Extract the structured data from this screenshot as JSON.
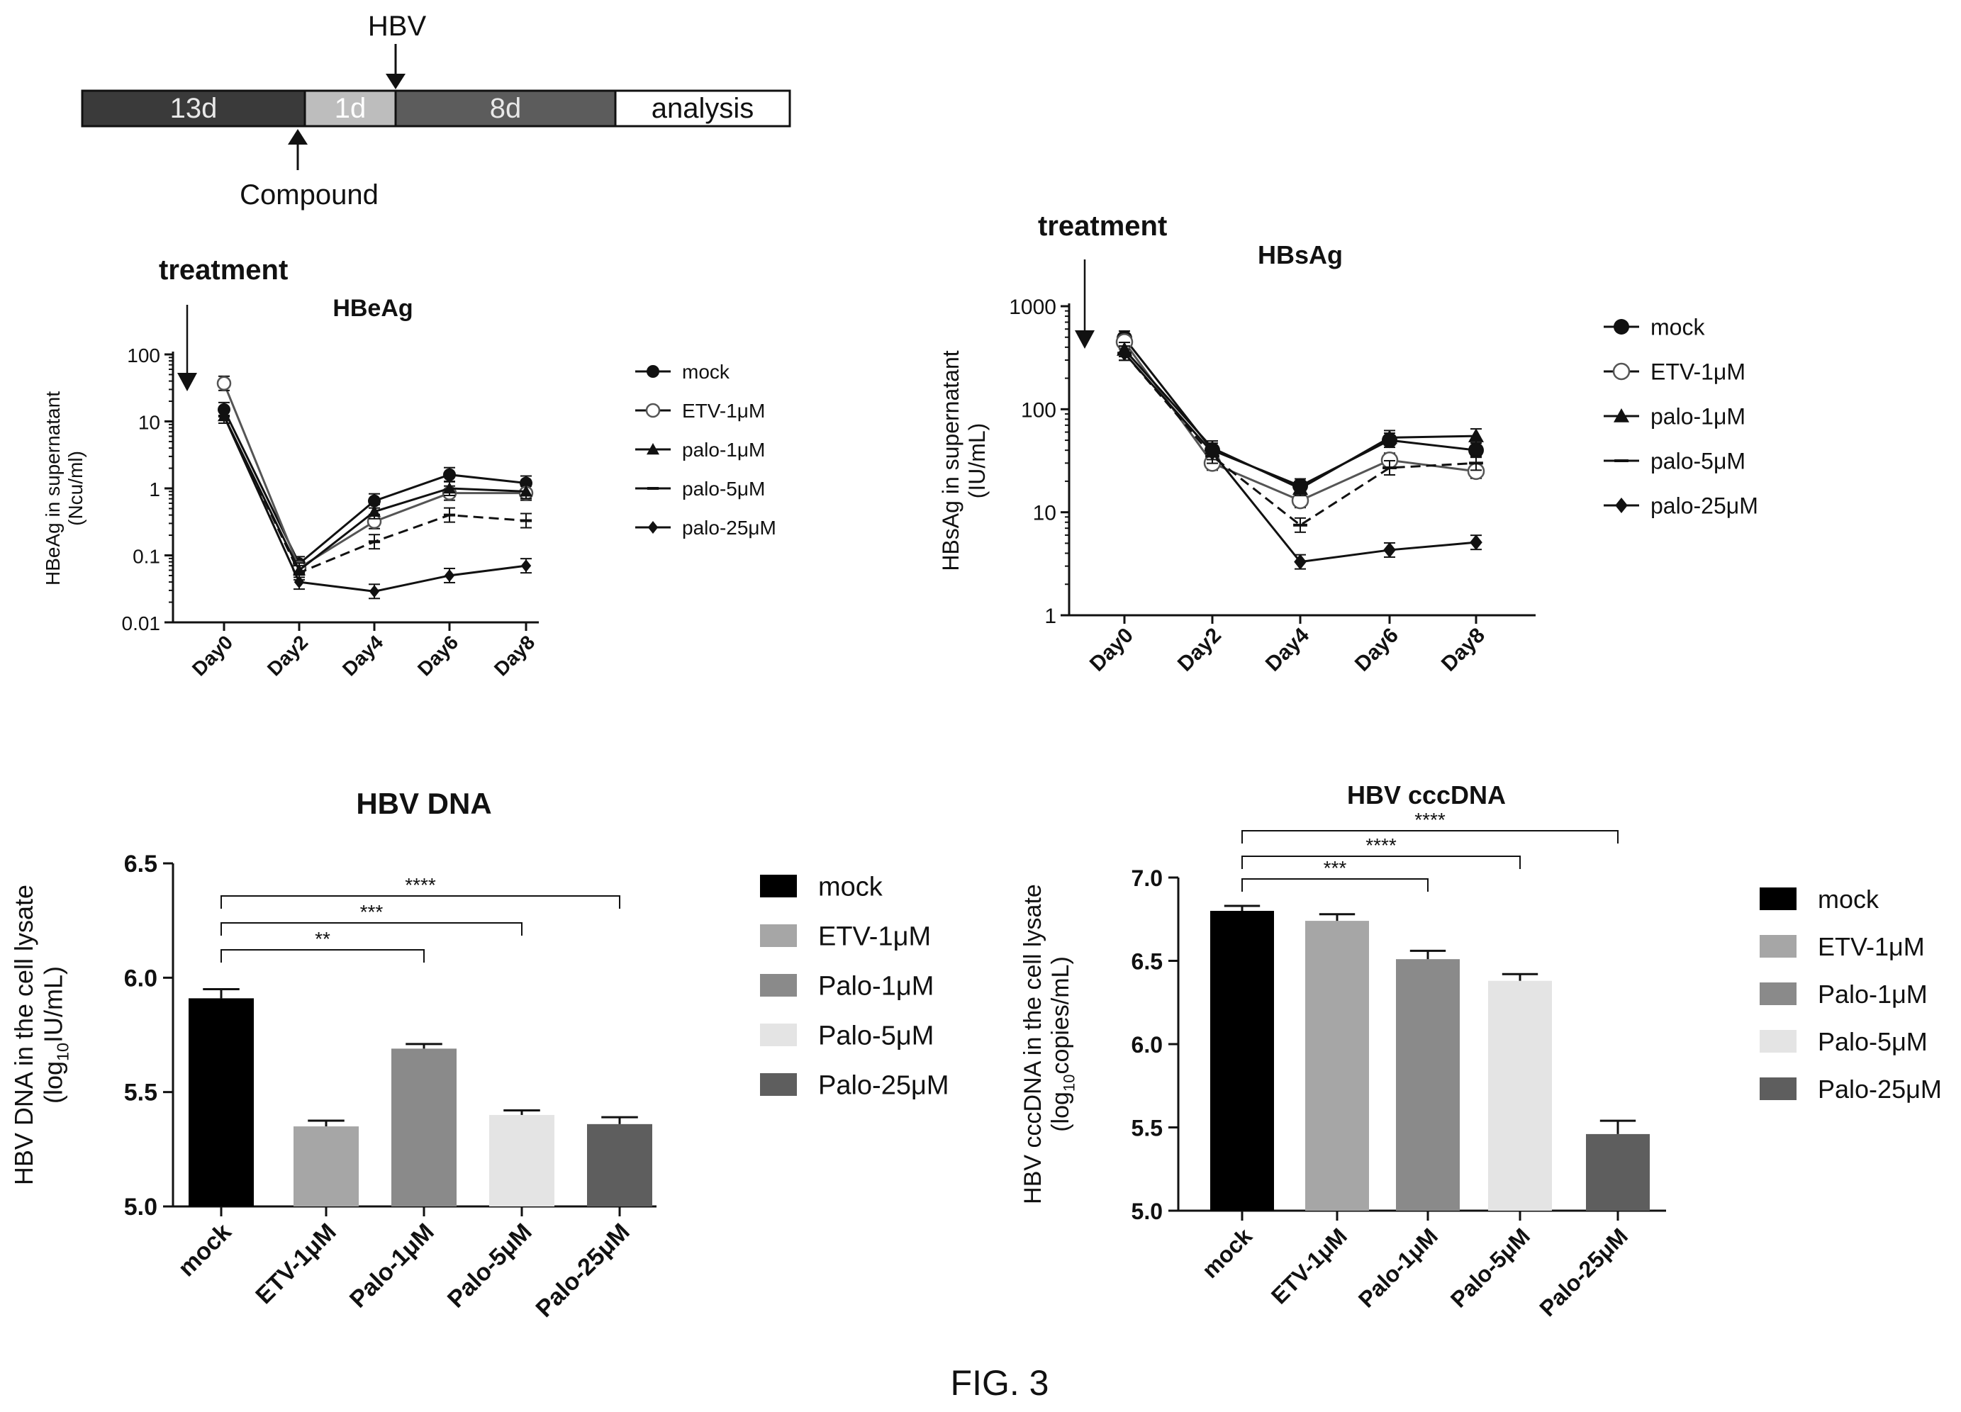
{
  "timeline": {
    "segments": [
      {
        "label": "13d",
        "fill": "#3a3a3a",
        "text_color": "#e8e8e8"
      },
      {
        "label": "1d",
        "fill": "#bdbdbd",
        "text_color": "#ffffff"
      },
      {
        "label": "8d",
        "fill": "#5c5c5c",
        "text_color": "#e8e8e8"
      },
      {
        "label": "analysis",
        "fill": "#ffffff",
        "text_color": "#111111"
      }
    ],
    "hbv_label": "HBV",
    "compound_label": "Compound"
  },
  "treatment_label": "treatment",
  "figure_label": "FIG. 3",
  "chart_data": [
    {
      "type": "line",
      "title": "HBeAg",
      "xlabel": "",
      "ylabel": "HBeAg in supernatant",
      "ylabel_unit": "(Ncu/ml)",
      "yscale": "log",
      "ylim": [
        0.01,
        100
      ],
      "ytick_labels": [
        "100",
        "10",
        "1",
        "0.1",
        "0.01"
      ],
      "ytick_values": [
        100,
        10,
        1,
        0.1,
        0.01
      ],
      "categories": [
        "Day0",
        "Day2",
        "Day4",
        "Day6",
        "Day8"
      ],
      "legend_position": "right",
      "series": [
        {
          "name": "mock",
          "marker": "circle",
          "values": [
            15,
            0.075,
            0.65,
            1.6,
            1.2
          ]
        },
        {
          "name": "ETV-1μM",
          "marker": "open-circle",
          "values": [
            37,
            0.065,
            0.32,
            0.85,
            0.85
          ]
        },
        {
          "name": "palo-1μM",
          "marker": "triangle",
          "values": [
            12,
            0.06,
            0.45,
            1.0,
            0.9
          ]
        },
        {
          "name": "palo-5μM",
          "marker": "dash",
          "values": [
            12,
            0.055,
            0.16,
            0.4,
            0.33
          ]
        },
        {
          "name": "palo-25μM",
          "marker": "diamond",
          "values": [
            12,
            0.04,
            0.029,
            0.05,
            0.07
          ]
        }
      ]
    },
    {
      "type": "line",
      "title": "HBsAg",
      "xlabel": "",
      "ylabel": "HBsAg in supernatant",
      "ylabel_unit": "(IU/mL)",
      "yscale": "log",
      "ylim": [
        1,
        1000
      ],
      "ytick_labels": [
        "1000",
        "100",
        "10",
        "1"
      ],
      "ytick_values": [
        1000,
        100,
        10,
        1
      ],
      "categories": [
        "Day0",
        "Day2",
        "Day4",
        "Day6",
        "Day8"
      ],
      "legend_position": "right",
      "series": [
        {
          "name": "mock",
          "marker": "circle",
          "values": [
            490,
            40,
            18,
            50,
            40
          ]
        },
        {
          "name": "ETV-1μM",
          "marker": "open-circle",
          "values": [
            450,
            30,
            13,
            32,
            25
          ]
        },
        {
          "name": "palo-1μM",
          "marker": "triangle",
          "values": [
            380,
            42,
            17,
            53,
            55
          ]
        },
        {
          "name": "palo-5μM",
          "marker": "dash",
          "values": [
            350,
            35,
            7.5,
            27,
            30
          ]
        },
        {
          "name": "palo-25μM",
          "marker": "diamond",
          "values": [
            350,
            38,
            3.3,
            4.3,
            5.1
          ]
        }
      ]
    },
    {
      "type": "bar",
      "title": "HBV DNA",
      "ylabel": "HBV DNA in the cell lysate",
      "ylabel_unit_prefix": "(log",
      "ylabel_unit_sub": "10",
      "ylabel_unit_suffix": "IU/mL)",
      "ylim": [
        5.0,
        6.5
      ],
      "ytick_labels": [
        "6.5",
        "6.0",
        "5.5",
        "5.0"
      ],
      "ytick_values": [
        6.5,
        6.0,
        5.5,
        5.0
      ],
      "categories": [
        "mock",
        "ETV-1μM",
        "Palo-1μM",
        "Palo-5μM",
        "Palo-25μM"
      ],
      "values": [
        5.91,
        5.35,
        5.69,
        5.4,
        5.36
      ],
      "errors": [
        0.04,
        0.025,
        0.02,
        0.02,
        0.03
      ],
      "colors": [
        "#000000",
        "#a6a6a6",
        "#8a8a8a",
        "#e4e4e4",
        "#5e5e5e"
      ],
      "legend_position": "right",
      "significance": [
        {
          "from": 0,
          "to": 2,
          "label": "**"
        },
        {
          "from": 0,
          "to": 3,
          "label": "***"
        },
        {
          "from": 0,
          "to": 4,
          "label": "****"
        }
      ]
    },
    {
      "type": "bar",
      "title": "HBV cccDNA",
      "ylabel": "HBV cccDNA in the cell lysate",
      "ylabel_unit_prefix": "(log",
      "ylabel_unit_sub": "10",
      "ylabel_unit_suffix": "copies/mL)",
      "ylim": [
        5.0,
        7.0
      ],
      "ytick_labels": [
        "7.0",
        "6.5",
        "6.0",
        "5.5",
        "5.0"
      ],
      "ytick_values": [
        7.0,
        6.5,
        6.0,
        5.5,
        5.0
      ],
      "categories": [
        "mock",
        "ETV-1μM",
        "Palo-1μM",
        "Palo-5μM",
        "Palo-25μM"
      ],
      "values": [
        6.8,
        6.74,
        6.51,
        6.38,
        5.46
      ],
      "errors": [
        0.03,
        0.04,
        0.05,
        0.04,
        0.08
      ],
      "colors": [
        "#000000",
        "#a6a6a6",
        "#8a8a8a",
        "#e4e4e4",
        "#5e5e5e"
      ],
      "legend_position": "right",
      "significance": [
        {
          "from": 0,
          "to": 2,
          "label": "***"
        },
        {
          "from": 0,
          "to": 3,
          "label": "****"
        },
        {
          "from": 0,
          "to": 4,
          "label": "****"
        }
      ]
    }
  ]
}
